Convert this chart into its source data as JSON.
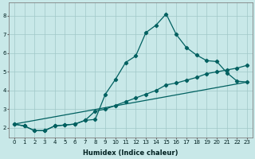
{
  "bg_color": "#c8e8e8",
  "grid_color": "#a0c8c8",
  "line_color": "#006060",
  "xlabel": "Humidex (Indice chaleur)",
  "xlim": [
    -0.5,
    23.5
  ],
  "ylim": [
    1.5,
    8.7
  ],
  "yticks": [
    2,
    3,
    4,
    5,
    6,
    7,
    8
  ],
  "xticks": [
    0,
    1,
    2,
    3,
    4,
    5,
    6,
    7,
    8,
    9,
    10,
    11,
    12,
    13,
    14,
    15,
    16,
    17,
    18,
    19,
    20,
    21,
    22,
    23
  ],
  "series1_x": [
    0,
    1,
    2,
    3,
    4,
    5,
    6,
    7,
    8,
    9,
    10,
    11,
    12,
    13,
    14,
    15,
    16,
    17,
    18,
    19,
    20,
    21,
    22,
    23
  ],
  "series1_y": [
    2.2,
    2.1,
    1.85,
    1.85,
    2.1,
    2.15,
    2.2,
    2.4,
    2.45,
    3.8,
    4.6,
    5.5,
    5.85,
    7.1,
    7.5,
    8.1,
    7.0,
    6.3,
    5.9,
    5.6,
    5.55,
    4.95,
    4.5,
    4.45
  ],
  "series2_x": [
    0,
    1,
    2,
    3,
    4,
    5,
    6,
    7,
    8,
    9,
    10,
    11,
    12,
    13,
    14,
    15,
    16,
    17,
    18,
    19,
    20,
    21,
    22,
    23
  ],
  "series2_y": [
    2.2,
    2.1,
    1.85,
    1.85,
    2.1,
    2.15,
    2.2,
    2.4,
    2.9,
    3.0,
    3.2,
    3.4,
    3.6,
    3.8,
    4.0,
    4.3,
    4.4,
    4.55,
    4.7,
    4.9,
    5.0,
    5.1,
    5.2,
    5.35
  ],
  "series3_x": [
    0,
    23
  ],
  "series3_y": [
    2.2,
    4.45
  ],
  "marker": "D",
  "markersize": 2.2,
  "linewidth": 0.9,
  "tick_fontsize": 5.0,
  "xlabel_fontsize": 6.0
}
